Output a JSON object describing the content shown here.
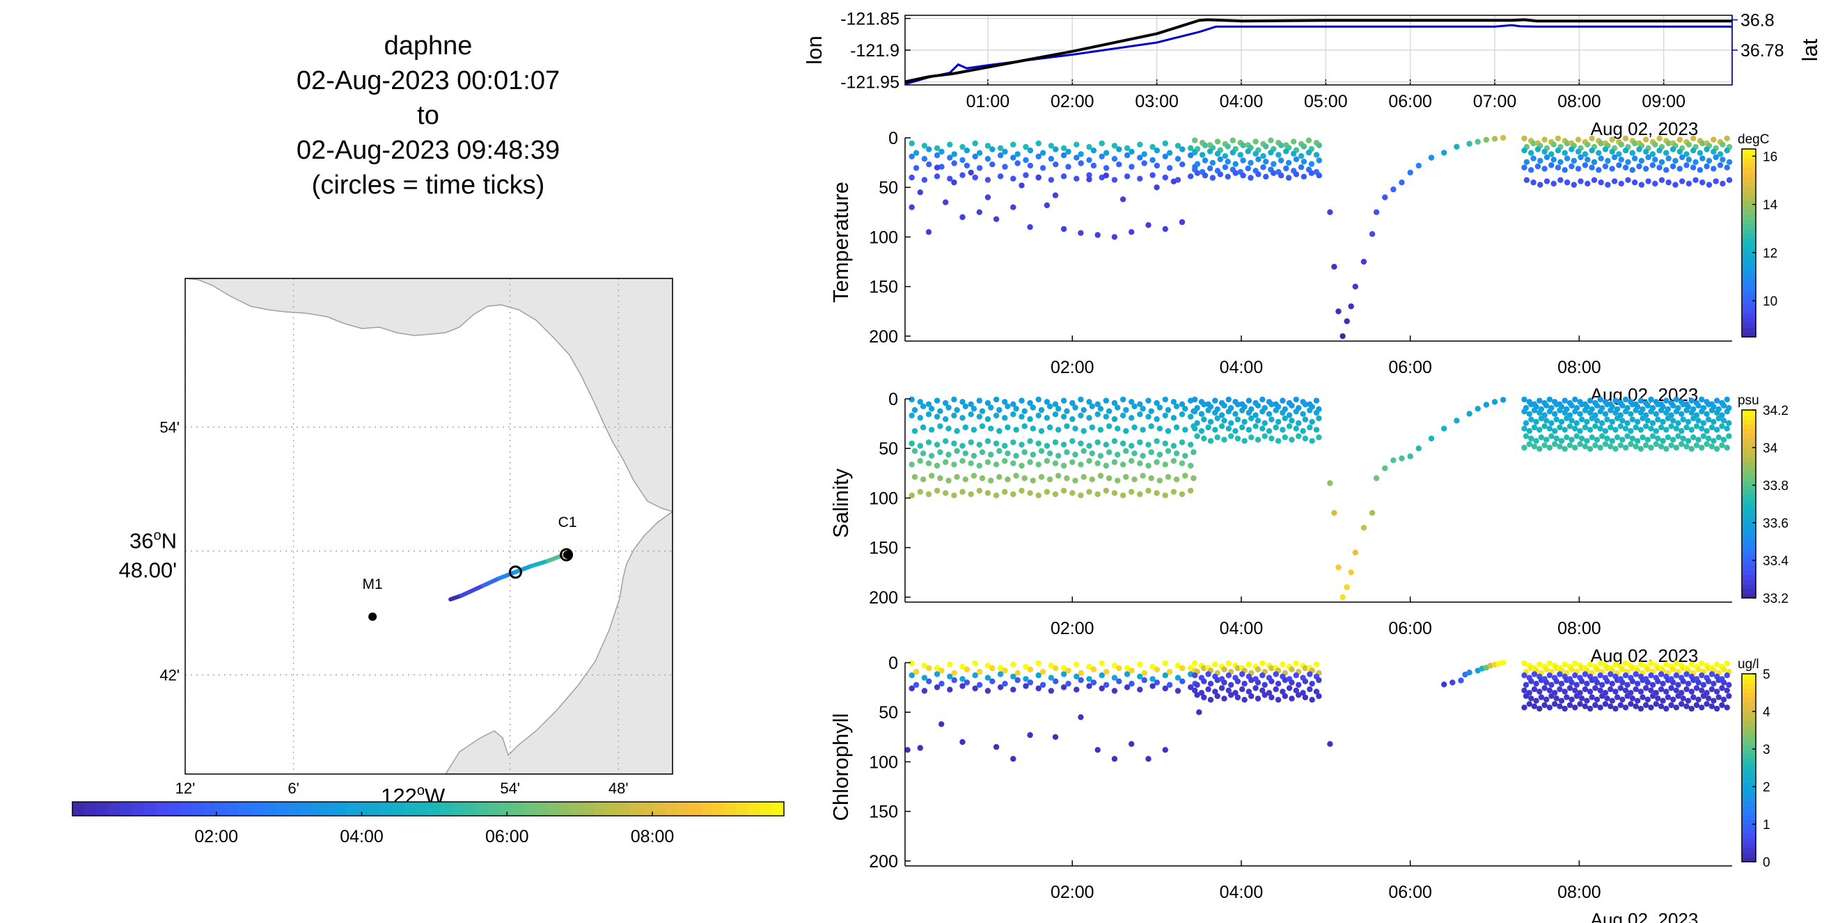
{
  "title": {
    "lines": [
      "daphne",
      "02-Aug-2023 00:01:07",
      "to",
      "02-Aug-2023 09:48:39",
      "(circles = time ticks)"
    ]
  },
  "colors": {
    "land": "#e6e6e6",
    "coast": "#a0a0a0",
    "lat_line": "#0000cc",
    "lon_line": "#000000",
    "grid": "#d9d9d9"
  },
  "chart_data": [
    {
      "id": "track_map",
      "type": "map",
      "lat_ticks": [
        {
          "value": 36.9,
          "label": "54'"
        },
        {
          "value": 36.8,
          "label": "48.00'",
          "degree_label": "36",
          "degree_sup": "o",
          "degree_suffix": "N"
        },
        {
          "value": 36.7,
          "label": "42'"
        }
      ],
      "lon_ticks": [
        {
          "value": -122.2,
          "label": "12'"
        },
        {
          "value": -122.1,
          "label": "6'"
        },
        {
          "value": -121.9,
          "label": "54'"
        },
        {
          "value": -121.8,
          "label": "48'"
        }
      ],
      "lon_degree_label": {
        "value": -122.0,
        "text": "122",
        "sup": "o",
        "suffix": "W"
      },
      "xlim": [
        -122.2,
        -121.75
      ],
      "ylim": [
        36.62,
        37.02
      ],
      "sites": [
        {
          "name": "M1",
          "lon": -122.027,
          "lat": 36.747
        },
        {
          "name": "C1",
          "lon": -121.847,
          "lat": 36.797
        }
      ],
      "track": [
        {
          "lon": -121.955,
          "lat": 36.761,
          "hour": 0.02
        },
        {
          "lon": -121.945,
          "lat": 36.764,
          "hour": 0.5
        },
        {
          "lon": -121.925,
          "lat": 36.772,
          "hour": 1.5
        },
        {
          "lon": -121.91,
          "lat": 36.778,
          "hour": 2.5
        },
        {
          "lon": -121.895,
          "lat": 36.783,
          "hour": 3.4
        },
        {
          "lon": -121.88,
          "lat": 36.788,
          "hour": 4.2
        },
        {
          "lon": -121.865,
          "lat": 36.792,
          "hour": 5.2
        },
        {
          "lon": -121.85,
          "lat": 36.797,
          "hour": 6.5
        },
        {
          "lon": -121.848,
          "lat": 36.797,
          "hour": 9.81
        }
      ],
      "time_tick_circles": [
        {
          "lon": -121.895,
          "lat": 36.783
        },
        {
          "lon": -121.848,
          "lat": 36.797
        }
      ],
      "colorbar": {
        "range": [
          0.02,
          9.81
        ],
        "ticks": [
          {
            "value": 2,
            "label": "02:00"
          },
          {
            "value": 4,
            "label": "04:00"
          },
          {
            "value": 6,
            "label": "06:00"
          },
          {
            "value": 8,
            "label": "08:00"
          }
        ]
      }
    },
    {
      "id": "position",
      "type": "line",
      "xlim": [
        0.02,
        9.81
      ],
      "x_ticks": [
        {
          "value": 1,
          "label": "01:00"
        },
        {
          "value": 2,
          "label": "02:00"
        },
        {
          "value": 3,
          "label": "03:00"
        },
        {
          "value": 4,
          "label": "04:00"
        },
        {
          "value": 5,
          "label": "05:00"
        },
        {
          "value": 6,
          "label": "06:00"
        },
        {
          "value": 7,
          "label": "07:00"
        },
        {
          "value": 8,
          "label": "08:00"
        },
        {
          "value": 9,
          "label": "09:00"
        }
      ],
      "date_label": "Aug 02, 2023",
      "left_axis": {
        "label": "lon",
        "ylim": [
          -121.955,
          -121.845
        ],
        "ticks": [
          -121.85,
          -121.9,
          -121.95
        ],
        "tick_labels": [
          "-121.85",
          "-121.9",
          "-121.95"
        ]
      },
      "right_axis": {
        "label": "lat",
        "ylim": [
          36.757,
          36.803
        ],
        "ticks": [
          36.8,
          36.78
        ],
        "tick_labels": [
          "36.8",
          "36.78"
        ]
      },
      "series": [
        {
          "axis": "right",
          "x": [
            0.02,
            0.3,
            0.55,
            0.65,
            0.75,
            1.0,
            2.0,
            3.0,
            3.5,
            3.7,
            4.0,
            5.0,
            6.0,
            7.0,
            7.2,
            7.3,
            7.5,
            8.0,
            9.0,
            9.81
          ],
          "y": [
            36.7575,
            36.762,
            36.765,
            36.7705,
            36.768,
            36.77,
            36.777,
            36.785,
            36.792,
            36.7955,
            36.7955,
            36.7955,
            36.7955,
            36.7955,
            36.7965,
            36.7958,
            36.7955,
            36.7955,
            36.7955,
            36.7955
          ]
        },
        {
          "axis": "left",
          "x": [
            0.02,
            0.3,
            0.6,
            1.0,
            2.0,
            3.0,
            3.5,
            3.6,
            4.0,
            5.0,
            6.0,
            7.0,
            7.2,
            7.35,
            7.5,
            8.0,
            9.0,
            9.81
          ],
          "y": [
            -121.95,
            -121.942,
            -121.937,
            -121.927,
            -121.902,
            -121.874,
            -121.853,
            -121.852,
            -121.854,
            -121.853,
            -121.853,
            -121.853,
            -121.853,
            -121.852,
            -121.854,
            -121.854,
            -121.854,
            -121.854
          ]
        }
      ]
    },
    {
      "id": "temperature",
      "type": "scatter",
      "ylabel": "Temperature",
      "xlim": [
        0.02,
        9.81
      ],
      "ylim": [
        0,
        205
      ],
      "y_ticks": [
        0,
        50,
        100,
        150,
        200
      ],
      "x_ticks": [
        {
          "value": 2,
          "label": "02:00"
        },
        {
          "value": 4,
          "label": "04:00"
        },
        {
          "value": 6,
          "label": "06:00"
        },
        {
          "value": 8,
          "label": "08:00"
        }
      ],
      "date_label": "Aug 02, 2023",
      "colorbar": {
        "unit": "degC",
        "range": [
          8.5,
          16.3
        ],
        "ticks": [
          10,
          12,
          14,
          16
        ]
      },
      "profiles": {
        "yo": {
          "x0": 0.1,
          "x1": 3.4,
          "step": 0.15,
          "depths": [
            8,
            14,
            20,
            28,
            40
          ],
          "values": [
            12.5,
            11.5,
            10.6,
            10.0,
            9.6
          ]
        },
        "deep": {
          "x": [
            0.1,
            0.3,
            0.5,
            0.7,
            0.9,
            1.1,
            1.3,
            1.5,
            1.7,
            1.9,
            2.1,
            2.3,
            2.5,
            2.7,
            2.9,
            3.1,
            3.3,
            0.2,
            0.6,
            1.0,
            1.4,
            1.8,
            2.2,
            2.6,
            3.0,
            0.4,
            0.8,
            1.6,
            2.4,
            3.2
          ],
          "y": [
            70,
            95,
            65,
            80,
            75,
            82,
            70,
            90,
            68,
            92,
            96,
            98,
            100,
            95,
            88,
            92,
            85,
            55,
            45,
            60,
            48,
            58,
            42,
            62,
            50,
            30,
            35,
            40,
            38,
            44
          ],
          "v": 9.2
        },
        "shallow2": {
          "x0": 3.45,
          "x1": 4.95,
          "step": 0.09,
          "depths": [
            5,
            10,
            16,
            24,
            32,
            38
          ],
          "values": [
            13.5,
            13.0,
            12.0,
            11.0,
            10.3,
            9.8
          ]
        },
        "dive": {
          "x": [
            5.05,
            5.1,
            5.15,
            5.2,
            5.25,
            5.3,
            5.35,
            5.45,
            5.55,
            5.6,
            5.7,
            5.8,
            5.9,
            6.0,
            6.1,
            6.25,
            6.4,
            6.55,
            6.7,
            6.8,
            6.9,
            7.0,
            7.1
          ],
          "y": [
            75,
            130,
            175,
            200,
            185,
            170,
            150,
            125,
            97,
            75,
            60,
            52,
            45,
            35,
            28,
            20,
            15,
            9,
            6,
            4,
            2,
            1,
            0
          ],
          "v": [
            9.2,
            8.9,
            8.7,
            8.6,
            8.7,
            8.8,
            9.0,
            9.1,
            9.4,
            9.6,
            9.8,
            10.0,
            10.2,
            10.5,
            10.8,
            11.2,
            11.6,
            12.2,
            12.7,
            13.2,
            13.7,
            14.2,
            14.8
          ]
        },
        "yo3": {
          "x0": 7.35,
          "x1": 9.8,
          "step": 0.08,
          "depths": [
            3,
            8,
            14,
            22,
            30,
            45
          ],
          "values": [
            14.5,
            13.5,
            12.0,
            11.0,
            10.3,
            9.6
          ]
        }
      }
    },
    {
      "id": "salinity",
      "type": "scatter",
      "ylabel": "Salinity",
      "xlim": [
        0.02,
        9.81
      ],
      "ylim": [
        0,
        205
      ],
      "y_ticks": [
        0,
        50,
        100,
        150,
        200
      ],
      "x_ticks": [
        {
          "value": 2,
          "label": "02:00"
        },
        {
          "value": 4,
          "label": "04:00"
        },
        {
          "value": 6,
          "label": "06:00"
        },
        {
          "value": 8,
          "label": "08:00"
        }
      ],
      "date_label": "Aug 02, 2023",
      "colorbar": {
        "unit": "psu",
        "range": [
          33.2,
          34.2
        ],
        "ticks": [
          33.2,
          33.4,
          33.6,
          33.8,
          34,
          34.2
        ]
      },
      "profiles": {
        "yo": {
          "x0": 0.1,
          "x1": 3.4,
          "step": 0.1,
          "depths": [
            3,
            10,
            18,
            30,
            45,
            55,
            65,
            80,
            95
          ],
          "values": [
            33.58,
            33.6,
            33.63,
            33.68,
            33.73,
            33.78,
            33.83,
            33.88,
            33.92
          ]
        },
        "shallow2": {
          "x0": 3.45,
          "x1": 4.95,
          "step": 0.08,
          "depths": [
            3,
            8,
            14,
            22,
            30,
            40
          ],
          "values": [
            33.55,
            33.57,
            33.6,
            33.64,
            33.68,
            33.72
          ]
        },
        "dive": {
          "x": [
            5.05,
            5.1,
            5.15,
            5.2,
            5.25,
            5.3,
            5.35,
            5.45,
            5.55,
            5.6,
            5.7,
            5.8,
            5.9,
            6.0,
            6.1,
            6.25,
            6.4,
            6.55,
            6.7,
            6.8,
            6.9,
            7.0,
            7.1
          ],
          "y": [
            85,
            115,
            170,
            200,
            190,
            175,
            155,
            130,
            115,
            80,
            70,
            62,
            60,
            58,
            50,
            40,
            30,
            22,
            15,
            10,
            6,
            3,
            1
          ],
          "v": [
            33.9,
            34.0,
            34.1,
            34.15,
            34.12,
            34.1,
            34.05,
            33.98,
            33.92,
            33.85,
            33.82,
            33.8,
            33.78,
            33.76,
            33.72,
            33.7,
            33.67,
            33.64,
            33.62,
            33.6,
            33.59,
            33.58,
            33.57
          ]
        },
        "yo3": {
          "x0": 7.35,
          "x1": 9.8,
          "step": 0.06,
          "depths": [
            3,
            8,
            14,
            22,
            30,
            40,
            48
          ],
          "values": [
            33.56,
            33.58,
            33.6,
            33.64,
            33.68,
            33.72,
            33.76
          ]
        }
      }
    },
    {
      "id": "chlorophyll",
      "type": "scatter",
      "ylabel": "Chlorophyll",
      "xlim": [
        0.02,
        9.81
      ],
      "ylim": [
        0,
        205
      ],
      "y_ticks": [
        0,
        50,
        100,
        150,
        200
      ],
      "x_ticks": [
        {
          "value": 2,
          "label": "02:00"
        },
        {
          "value": 4,
          "label": "04:00"
        },
        {
          "value": 6,
          "label": "06:00"
        },
        {
          "value": 8,
          "label": "08:00"
        }
      ],
      "date_label": "Aug 02, 2023",
      "colorbar": {
        "unit": "ug/l",
        "range": [
          0,
          5
        ],
        "ticks": [
          0,
          1,
          2,
          3,
          4,
          5
        ]
      },
      "profiles": {
        "yo": {
          "x0": 0.1,
          "x1": 3.4,
          "step": 0.15,
          "depths": [
            3,
            8,
            14,
            20,
            26
          ],
          "values": [
            5,
            4.6,
            2.0,
            0.8,
            0.3
          ]
        },
        "deep": {
          "x": [
            0.05,
            0.2,
            0.45,
            0.7,
            1.1,
            1.3,
            1.5,
            1.8,
            2.1,
            2.3,
            2.5,
            2.7,
            2.9,
            3.1,
            3.5,
            5.05
          ],
          "y": [
            88,
            86,
            62,
            80,
            85,
            97,
            73,
            75,
            55,
            88,
            97,
            82,
            97,
            88,
            50,
            82
          ],
          "v": 0.2
        },
        "shallow2": {
          "x0": 3.45,
          "x1": 4.95,
          "step": 0.08,
          "depths": [
            3,
            8,
            14,
            20,
            28,
            35
          ],
          "values": [
            5,
            4.0,
            0.6,
            0.4,
            0.3,
            0.25
          ]
        },
        "dive": {
          "x": [
            6.4,
            6.5,
            6.6,
            6.65,
            6.7,
            6.8,
            6.85,
            6.9,
            6.95,
            7.0,
            7.05,
            7.1
          ],
          "y": [
            22,
            20,
            18,
            12,
            10,
            8,
            6,
            5,
            3,
            2,
            1,
            0
          ],
          "v": [
            0.3,
            0.5,
            0.8,
            1.2,
            1.6,
            2.0,
            2.5,
            3.2,
            4.0,
            4.6,
            5,
            5
          ]
        },
        "yo3": {
          "x0": 7.35,
          "x1": 9.8,
          "step": 0.06,
          "depths": [
            3,
            8,
            14,
            20,
            28,
            36,
            44
          ],
          "values": [
            5,
            4.8,
            0.6,
            0.4,
            0.3,
            0.25,
            0.2
          ]
        }
      }
    }
  ]
}
